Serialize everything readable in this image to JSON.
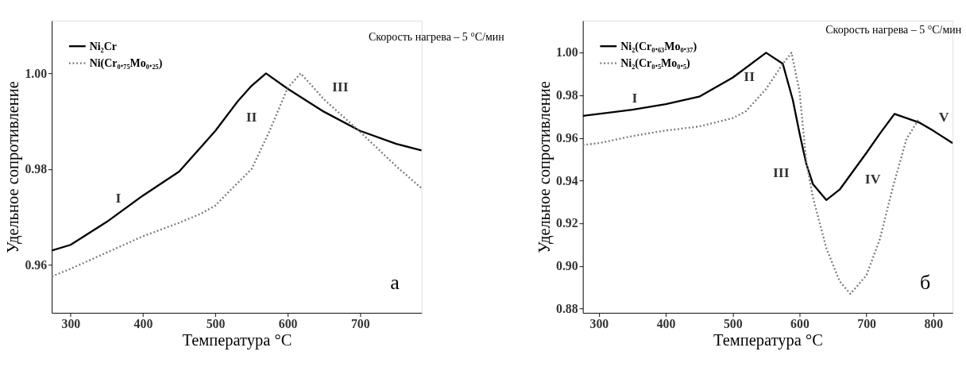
{
  "chart_data": [
    {
      "type": "line",
      "xlabel": "Температура °C",
      "ylabel": "Удельное сопротивление",
      "xlim": [
        274,
        785
      ],
      "ylim": [
        0.95,
        1.011
      ],
      "xticks": [
        300,
        400,
        500,
        600,
        700
      ],
      "yticks": [
        {
          "value": 0.96,
          "label": "0.96"
        },
        {
          "value": 0.98,
          "label": "0.98"
        },
        {
          "value": 1.0,
          "label": "1.00"
        }
      ],
      "grid": false,
      "legend": "top left",
      "series": [
        {
          "name": "Ni₂Cr",
          "color": "#000000",
          "line_style": "solid",
          "x": [
            274,
            300,
            350,
            400,
            450,
            500,
            530,
            550,
            570,
            600,
            650,
            700,
            750,
            785
          ],
          "values": [
            0.963,
            0.9642,
            0.969,
            0.9745,
            0.9795,
            0.988,
            0.994,
            0.9974,
            1.0,
            0.9968,
            0.992,
            0.988,
            0.9853,
            0.9839
          ]
        },
        {
          "name": "Ni(Cr₀.₇₅Mo₀.₂₅)",
          "color": "#777777",
          "line_style": "dotted",
          "x": [
            274,
            300,
            350,
            400,
            450,
            480,
            500,
            520,
            550,
            575,
            600,
            618,
            650,
            700,
            750,
            785
          ],
          "values": [
            0.9576,
            0.9592,
            0.9626,
            0.966,
            0.9688,
            0.9707,
            0.9724,
            0.9755,
            0.98,
            0.988,
            0.997,
            1.0,
            0.9946,
            0.9878,
            0.9806,
            0.976
          ]
        }
      ],
      "annotations": [
        "Скорость нагрева – 5 °C/мин",
        "I",
        "II",
        "III",
        "а"
      ]
    },
    {
      "type": "line",
      "xlabel": "Температура °C",
      "ylabel": "Удельное сопротивление",
      "xlim": [
        276,
        829
      ],
      "ylim": [
        0.878,
        1.015
      ],
      "xticks": [
        300,
        400,
        500,
        600,
        700,
        800
      ],
      "yticks": [
        0.88,
        {
          "value": 0.9,
          "label": "0.90"
        },
        0.92,
        0.94,
        0.96,
        0.98,
        {
          "value": 1.0,
          "label": "1.00"
        }
      ],
      "grid": false,
      "legend": "top left",
      "series": [
        {
          "name": "Ni₂(Cr₀.₆₃Mo₀.₃₇)",
          "color": "#000000",
          "line_style": "solid",
          "x": [
            276,
            300,
            350,
            400,
            450,
            500,
            550,
            575,
            590,
            600,
            610,
            620,
            640,
            660,
            700,
            720,
            742,
            780,
            800,
            829
          ],
          "values": [
            0.9704,
            0.9713,
            0.9733,
            0.9759,
            0.9794,
            0.9883,
            1.0,
            0.9948,
            0.9778,
            0.9622,
            0.948,
            0.9384,
            0.9309,
            0.9358,
            0.953,
            0.962,
            0.9713,
            0.9671,
            0.9634,
            0.9576
          ]
        },
        {
          "name": "Ni₂(Cr₀.₅Mo₀.₅)",
          "color": "#777777",
          "line_style": "dotted",
          "x": [
            276,
            300,
            350,
            400,
            450,
            500,
            520,
            550,
            575,
            588,
            600,
            610,
            620,
            640,
            660,
            676,
            700,
            720,
            740,
            760,
            778
          ],
          "values": [
            0.9567,
            0.9576,
            0.9609,
            0.9635,
            0.9654,
            0.9693,
            0.9726,
            0.983,
            0.9948,
            1.0,
            0.9817,
            0.9491,
            0.9322,
            0.9084,
            0.8928,
            0.8869,
            0.8956,
            0.9125,
            0.9374,
            0.9596,
            0.9687
          ]
        }
      ],
      "annotations": [
        "Скорость нагрева – 5 °C/мин",
        "I",
        "II",
        "III",
        "IV",
        "V",
        "б"
      ]
    }
  ]
}
